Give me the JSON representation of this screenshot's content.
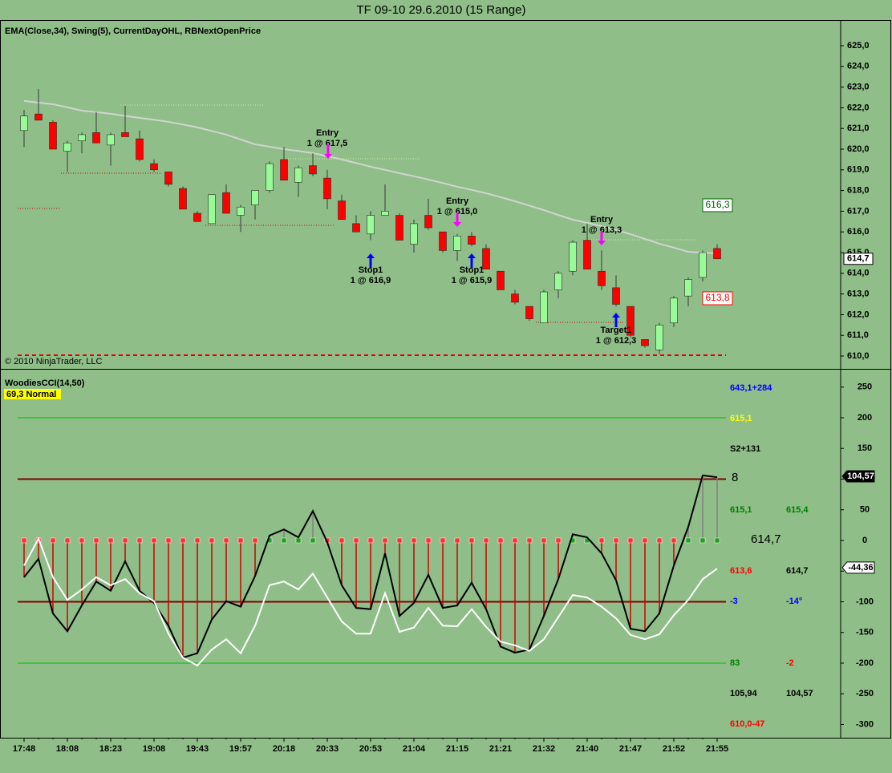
{
  "chart_data": [
    {
      "type": "candlestick",
      "title": "TF 09-10  29.6.2010 (15 Range)",
      "subtitle": "EMA(Close,34), Swing(5), CurrentDayOHL, RBNextOpenPrice",
      "copyright": "© 2010 NinjaTrader, LLC",
      "up_color": "#98fb98",
      "down_color": "#ff0000",
      "open": [
        620.9,
        621.7,
        621.3,
        619.9,
        620.4,
        620.8,
        620.2,
        620.8,
        620.5,
        619.3,
        618.9,
        618.1,
        616.9,
        616.4,
        617.9,
        616.8,
        617.3,
        618.0,
        619.5,
        618.4,
        619.2,
        618.6,
        617.5,
        616.4,
        615.9,
        616.8,
        616.8,
        615.4,
        616.8,
        616.0,
        615.1,
        615.8,
        615.2,
        614.1,
        613.0,
        612.4,
        611.6,
        613.2,
        614.1,
        615.6,
        614.1,
        613.3,
        612.4,
        610.8,
        610.3,
        611.6,
        612.9,
        613.8,
        615.2
      ],
      "high": [
        621.9,
        622.9,
        621.4,
        620.4,
        620.8,
        621.8,
        620.8,
        622.1,
        620.9,
        619.5,
        618.9,
        618.2,
        617.0,
        617.8,
        618.3,
        617.3,
        618.0,
        619.4,
        620.1,
        619.2,
        619.8,
        619.0,
        617.8,
        616.8,
        617.0,
        618.3,
        616.9,
        616.6,
        617.6,
        616.0,
        615.9,
        616.0,
        615.4,
        614.1,
        613.2,
        612.4,
        613.2,
        614.1,
        615.6,
        616.4,
        615.1,
        613.9,
        612.4,
        610.8,
        611.6,
        612.9,
        613.8,
        615.1,
        615.4
      ],
      "low": [
        620.1,
        621.4,
        620.0,
        618.9,
        619.8,
        620.3,
        619.2,
        620.6,
        619.4,
        618.9,
        618.2,
        617.1,
        616.5,
        616.4,
        616.9,
        616.0,
        616.6,
        617.9,
        618.5,
        617.7,
        618.7,
        617.1,
        616.6,
        616.0,
        615.6,
        616.8,
        615.6,
        615.0,
        616.1,
        615.0,
        614.6,
        615.3,
        614.2,
        613.2,
        612.5,
        611.7,
        611.6,
        612.8,
        613.9,
        614.2,
        613.2,
        612.4,
        610.9,
        610.4,
        610.1,
        611.4,
        612.4,
        613.6,
        614.7
      ],
      "close": [
        621.6,
        621.4,
        620.0,
        620.3,
        620.7,
        620.3,
        620.7,
        620.6,
        619.5,
        619.0,
        618.3,
        617.1,
        616.5,
        617.8,
        616.9,
        617.2,
        618.0,
        619.3,
        618.5,
        619.1,
        618.8,
        617.6,
        616.6,
        616.0,
        616.8,
        617.0,
        615.6,
        616.4,
        616.2,
        615.1,
        615.8,
        615.4,
        614.2,
        613.2,
        612.6,
        611.8,
        613.1,
        614.0,
        615.5,
        614.2,
        613.4,
        612.5,
        611.0,
        610.5,
        611.5,
        612.8,
        613.7,
        615.0,
        614.7
      ],
      "ema": {
        "color": "#d3d3d3",
        "values": [
          622.33,
          622.25,
          622.17,
          622.02,
          621.86,
          621.79,
          621.71,
          621.61,
          621.51,
          621.42,
          621.32,
          621.19,
          621.05,
          620.88,
          620.7,
          620.47,
          620.23,
          620.12,
          620.0,
          619.91,
          619.81,
          619.66,
          619.5,
          619.33,
          619.15,
          619.0,
          618.84,
          618.69,
          618.53,
          618.36,
          618.18,
          618.03,
          617.87,
          617.68,
          617.48,
          617.27,
          617.05,
          616.82,
          616.59,
          616.44,
          616.28,
          616.09,
          615.89,
          615.66,
          615.43,
          615.24,
          615.04,
          615.0,
          614.96
        ]
      },
      "ylim": [
        609.38,
        626.24
      ],
      "yticks": [
        {
          "value": 610,
          "label": "610,0"
        },
        {
          "value": 611,
          "label": "611,0"
        },
        {
          "value": 612,
          "label": "612,0"
        },
        {
          "value": 613,
          "label": "613,0"
        },
        {
          "value": 614,
          "label": "614,0"
        },
        {
          "value": 615,
          "label": "615,0"
        },
        {
          "value": 616,
          "label": "616,0"
        },
        {
          "value": 617,
          "label": "617,0"
        },
        {
          "value": 618,
          "label": "618,0"
        },
        {
          "value": 619,
          "label": "619,0"
        },
        {
          "value": 620,
          "label": "620,0"
        },
        {
          "value": 621,
          "label": "621,0"
        },
        {
          "value": 622,
          "label": "622,0"
        },
        {
          "value": 623,
          "label": "623,0"
        },
        {
          "value": 624,
          "label": "624,0"
        },
        {
          "value": 625,
          "label": "625,0"
        }
      ],
      "last_price": {
        "value": 614.7,
        "label": "614,7"
      },
      "price_boxes": [
        {
          "label": "616,3",
          "color": "#006400"
        },
        {
          "label": "613,8",
          "color": "#ff0000"
        }
      ],
      "trades": [
        {
          "label": "Entry",
          "detail": "1 @ 617,5"
        },
        {
          "label": "Stop1",
          "detail": "1 @ 616,9"
        },
        {
          "label": "Entry",
          "detail": "1 @ 615,0"
        },
        {
          "label": "Stop1",
          "detail": "1 @ 615,9"
        },
        {
          "label": "Entry",
          "detail": "1 @ 613,3"
        },
        {
          "label": "Target1",
          "detail": "1 @ 612,3"
        }
      ]
    },
    {
      "type": "line",
      "title": "WoodiesCCI(14,50)",
      "badge": "69,3 Normal",
      "categories": [
        "17:48",
        null,
        null,
        "18:08",
        null,
        null,
        "18:23",
        null,
        null,
        "19:08",
        null,
        null,
        "19:43",
        null,
        null,
        "19:57",
        null,
        null,
        "20:18",
        null,
        null,
        "20:33",
        null,
        null,
        "20:53",
        null,
        null,
        "21:04",
        null,
        null,
        "21:15",
        null,
        null,
        "21:21",
        null,
        null,
        "21:32",
        null,
        null,
        "21:40",
        null,
        null,
        "21:47",
        null,
        null,
        "21:52",
        null,
        null,
        "21:55"
      ],
      "series": [
        {
          "color": "#000000",
          "values": [
            -60,
            -30,
            -119,
            -148,
            -106,
            -67,
            -82,
            -34,
            -82,
            -102,
            -139,
            -191,
            -184,
            -129,
            -99,
            -108,
            -58,
            8,
            18,
            5,
            48,
            -3,
            -73,
            -110,
            -112,
            -21,
            -123,
            -102,
            -56,
            -110,
            -106,
            -69,
            -112,
            -173,
            -183,
            -178,
            -123,
            -63,
            10,
            5,
            -21,
            -65,
            -144,
            -148,
            -119,
            -41,
            22,
            106,
            103
          ]
        },
        {
          "color": "#ffffff",
          "values": [
            -41,
            3,
            -60,
            -97,
            -80,
            -60,
            -73,
            -63,
            -86,
            -99,
            -152,
            -191,
            -204,
            -178,
            -161,
            -184,
            -139,
            -73,
            -67,
            -80,
            -54,
            -93,
            -132,
            -152,
            -152,
            -86,
            -149,
            -142,
            -110,
            -139,
            -140,
            -112,
            -141,
            -165,
            -171,
            -180,
            -161,
            -125,
            -89,
            -93,
            -108,
            -127,
            -154,
            -161,
            -153,
            -122,
            -97,
            -63,
            -46
          ]
        }
      ],
      "ylim": [
        -321.6,
        278.4
      ],
      "yticks": [
        250,
        200,
        150,
        100,
        50,
        0,
        -50,
        -100,
        -150,
        -200,
        -250,
        -300
      ],
      "hlines": [
        {
          "value": 200,
          "color": "#00c000"
        },
        {
          "value": 100,
          "color": "#800000"
        },
        {
          "value": -100,
          "color": "#800000"
        },
        {
          "value": -200,
          "color": "#00c000"
        }
      ],
      "value_boxes": [
        {
          "value": 104.57,
          "label": "104,57"
        },
        {
          "value": -44.36,
          "label": "-44,36"
        }
      ],
      "side_texts": [
        {
          "text": "643,1+284",
          "color": "#0000ff"
        },
        {
          "text": "615,1",
          "color": "#ffff00"
        },
        {
          "text": "S2+131",
          "color": "#000000"
        },
        {
          "text": "8",
          "color": "#000000"
        },
        {
          "text": "615,1",
          "color": "#008000"
        },
        {
          "text": "615,4",
          "color": "#008000"
        },
        {
          "text": "614,7",
          "color": "#000000"
        },
        {
          "text": "613,6",
          "color": "#ff0000"
        },
        {
          "text": "614,7",
          "color": "#000000"
        },
        {
          "text": "-3",
          "color": "#0000ff"
        },
        {
          "text": "-14°",
          "color": "#0000ff"
        },
        {
          "text": "83",
          "color": "#008000"
        },
        {
          "text": "-2",
          "color": "#ff0000"
        },
        {
          "text": "105,94",
          "color": "#000000"
        },
        {
          "text": "104,57",
          "color": "#000000"
        },
        {
          "text": "610,0-47",
          "color": "#ff0000"
        }
      ]
    }
  ]
}
